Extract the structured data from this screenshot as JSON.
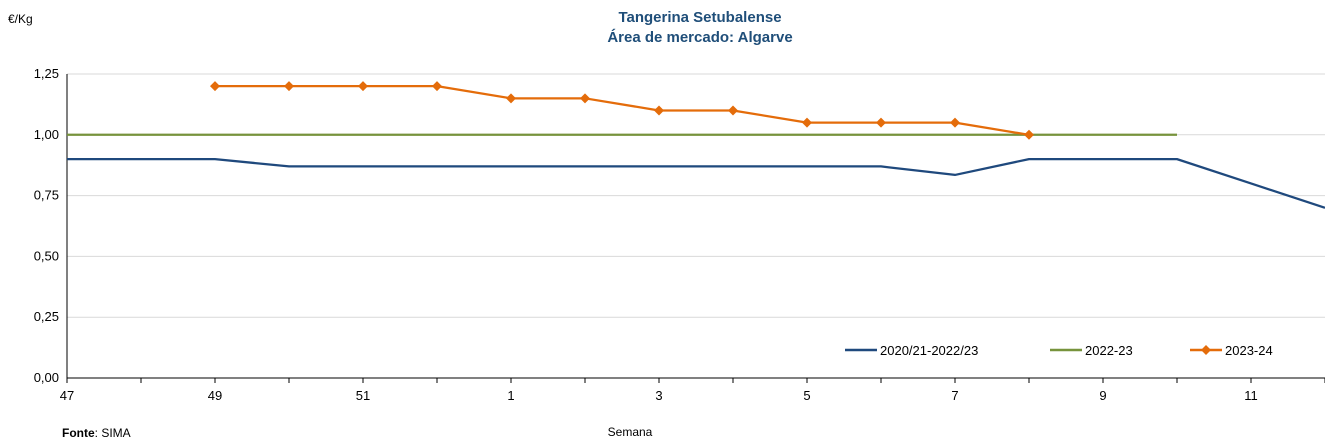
{
  "chart_data": {
    "type": "line",
    "title": "Tangerina Setubalense",
    "subtitle": "Área de mercado: Algarve",
    "ylabel": "€/Kg",
    "xlabel": "Semana",
    "source_label": "Fonte",
    "source_value": ": SIMA",
    "ylim": [
      0,
      1.25
    ],
    "yticks": [
      "0,00",
      "0,25",
      "0,50",
      "0,75",
      "1,00",
      "1,25"
    ],
    "x_weeks": [
      "47",
      "48",
      "49",
      "50",
      "51",
      "52",
      "1",
      "2",
      "3",
      "4",
      "5",
      "6",
      "7",
      "8",
      "9",
      "10",
      "11",
      "12"
    ],
    "x_tick_labels": [
      "47",
      "49",
      "51",
      "1",
      "3",
      "5",
      "7",
      "9",
      "11"
    ],
    "grid": true,
    "legend_position": "bottom-right",
    "series": [
      {
        "name": "2020/21-2022/23",
        "color": "#1F497D",
        "marker": "none",
        "values": [
          0.9,
          0.9,
          0.9,
          0.87,
          0.87,
          0.87,
          0.87,
          0.87,
          0.87,
          0.87,
          0.87,
          0.87,
          0.835,
          0.9,
          0.9,
          0.9,
          0.8,
          0.7
        ]
      },
      {
        "name": "2022-23",
        "color": "#77933C",
        "marker": "none",
        "values": [
          1.0,
          1.0,
          1.0,
          1.0,
          1.0,
          1.0,
          1.0,
          1.0,
          1.0,
          1.0,
          1.0,
          1.0,
          1.0,
          1.0,
          1.0,
          1.0,
          null,
          null
        ]
      },
      {
        "name": "2023-24",
        "color": "#E46C0A",
        "marker": "diamond",
        "values": [
          null,
          null,
          1.2,
          1.2,
          1.2,
          1.2,
          1.15,
          1.15,
          1.1,
          1.1,
          1.05,
          1.05,
          1.05,
          1.0,
          null,
          null,
          null,
          null
        ]
      }
    ]
  }
}
